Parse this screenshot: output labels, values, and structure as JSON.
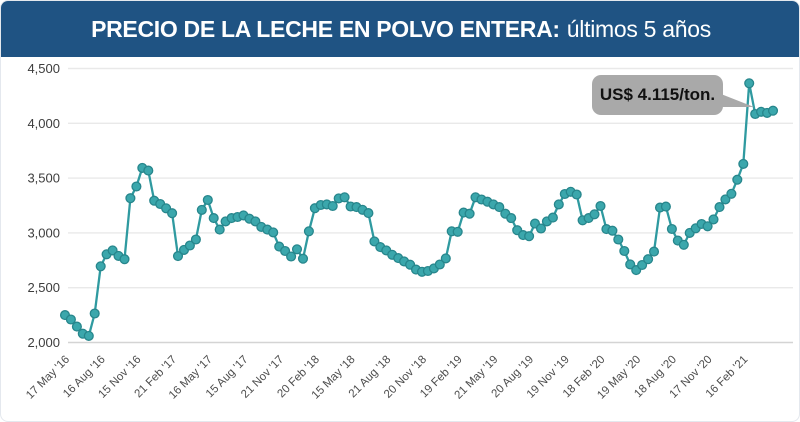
{
  "header": {
    "title_bold": "PRECIO DE LA LECHE EN POLVO ENTERA:",
    "title_light": "últimos 5 años"
  },
  "callout": {
    "label": "US$ 4.115/ton.",
    "points_to_value": 4115
  },
  "colors": {
    "titlebar_bg": "#1f5383",
    "title_text": "#ffffff",
    "line": "#2f9aa0",
    "marker_fill": "#3ba7ac",
    "marker_stroke": "#27868c",
    "gridline": "#e9e9e9",
    "baseline": "#d4d4d4",
    "y_label": "#3d3d3d",
    "x_label": "#4d4d4d",
    "callout_bg": "#a9a9a9"
  },
  "chart_data": {
    "type": "line",
    "title": "PRECIO DE LA LECHE EN POLVO ENTERA: últimos 5 años",
    "xlabel": "",
    "ylabel": "",
    "ylim": [
      2000,
      4500
    ],
    "grid": "horizontal",
    "legend": "none",
    "y_ticks": [
      {
        "value": 2000,
        "label": "2,000"
      },
      {
        "value": 2500,
        "label": "2,500"
      },
      {
        "value": 3000,
        "label": "3,000"
      },
      {
        "value": 3500,
        "label": "3,500"
      },
      {
        "value": 4000,
        "label": "4,000"
      },
      {
        "value": 4500,
        "label": "4,500"
      }
    ],
    "x_tick_labels": [
      "17 May '16",
      "16 Aug '16",
      "15 Nov '16",
      "21 Feb '17",
      "16 May '17",
      "15 Aug '17",
      "21 Nov '17",
      "20 Feb '18",
      "15 May '18",
      "21 Aug '18",
      "20 Nov '18",
      "19 Feb '19",
      "21 May '19",
      "20 Aug '19",
      "19 Nov '19",
      "18 Feb '20",
      "19 May '20",
      "18 Aug '20",
      "17 Nov '20",
      "16 Feb '21"
    ],
    "label_every": 6,
    "unit": "US$/ton",
    "values": [
      2250,
      2210,
      2145,
      2080,
      2060,
      2265,
      2695,
      2805,
      2840,
      2790,
      2760,
      3317,
      3423,
      3593,
      3568,
      3294,
      3264,
      3224,
      3180,
      2788,
      2845,
      2885,
      2940,
      3210,
      3300,
      3135,
      3030,
      3105,
      3135,
      3145,
      3160,
      3130,
      3105,
      3055,
      3030,
      3005,
      2875,
      2835,
      2785,
      2850,
      2765,
      3015,
      3225,
      3255,
      3260,
      3245,
      3315,
      3325,
      3241,
      3235,
      3211,
      3181,
      2922,
      2870,
      2840,
      2800,
      2770,
      2740,
      2710,
      2665,
      2645,
      2652,
      2676,
      2712,
      2767,
      3015,
      3010,
      3185,
      3175,
      3325,
      3305,
      3285,
      3260,
      3235,
      3175,
      3135,
      3025,
      2980,
      2970,
      3085,
      3040,
      3105,
      3140,
      3260,
      3355,
      3375,
      3350,
      3115,
      3135,
      3170,
      3245,
      3035,
      3020,
      2940,
      2835,
      2713,
      2661,
      2707,
      2760,
      2829,
      3231,
      3240,
      3036,
      2930,
      2891,
      3000,
      3042,
      3081,
      3060,
      3123,
      3235,
      3306,
      3357,
      3485,
      3630,
      4365,
      4085,
      4105,
      4095,
      4115
    ]
  }
}
